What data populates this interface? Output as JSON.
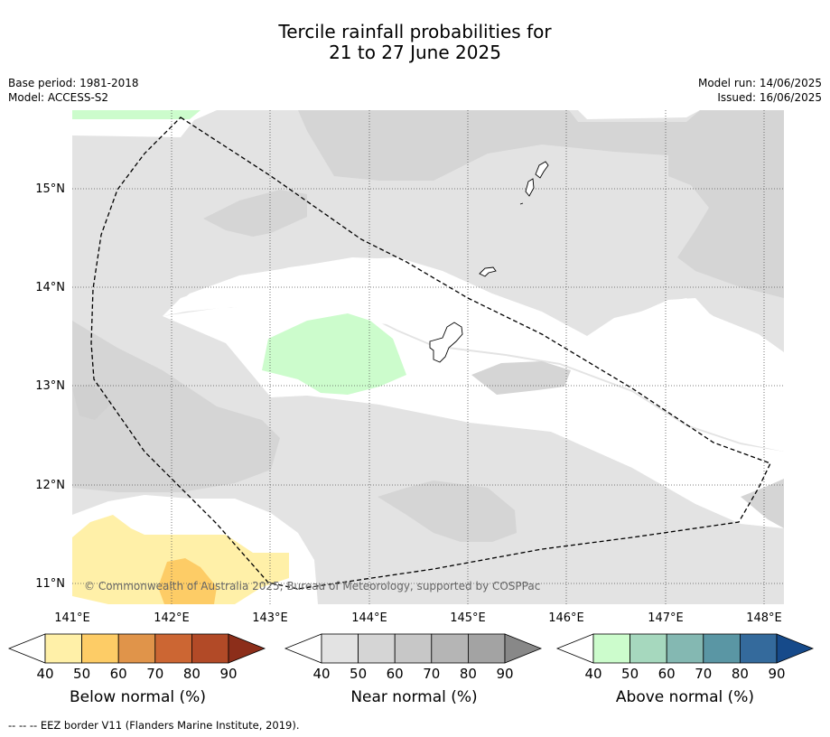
{
  "title_line1": "Tercile rainfall probabilities for",
  "title_line2": "21 to 27 June 2025",
  "base_period": "Base period: 1981-2018",
  "model": "Model: ACCESS-S2",
  "model_run": "Model run: 14/06/2025",
  "issued": "Issued: 16/06/2025",
  "copyright": "© Commonwealth of Australia 2025, Bureau of Meteorology, supported by COSPPac",
  "axes": {
    "lon_ticks": [
      "141°E",
      "142°E",
      "143°E",
      "144°E",
      "145°E",
      "146°E",
      "147°E",
      "148°E"
    ],
    "lat_ticks": [
      "15°N",
      "14°N",
      "13°N",
      "12°N",
      "11°N"
    ]
  },
  "colorbars": [
    {
      "label": "Below normal (%)",
      "ticks": [
        "40",
        "50",
        "60",
        "70",
        "80",
        "90"
      ],
      "colors": [
        "#fff0a8",
        "#fdcc66",
        "#e0944a",
        "#cc6633",
        "#b24a27",
        "#8c2e1a"
      ]
    },
    {
      "label": "Near normal (%)",
      "ticks": [
        "40",
        "50",
        "60",
        "70",
        "80",
        "90"
      ],
      "colors": [
        "#e3e3e3",
        "#d5d5d5",
        "#c7c7c7",
        "#b5b5b5",
        "#a3a3a3",
        "#888888"
      ]
    },
    {
      "label": "Above normal (%)",
      "ticks": [
        "40",
        "50",
        "60",
        "70",
        "80",
        "90"
      ],
      "colors": [
        "#ccfccc",
        "#a6d8be",
        "#84b8b2",
        "#5a96a4",
        "#346a9c",
        "#164a8a"
      ]
    }
  ],
  "footnote": "--  --  -- EEZ border V11 (Flanders Marine Institute, 2019).",
  "legend_colors": {
    "land_outline": "#000000",
    "eez_line": "#000000",
    "grid": "#555555"
  }
}
